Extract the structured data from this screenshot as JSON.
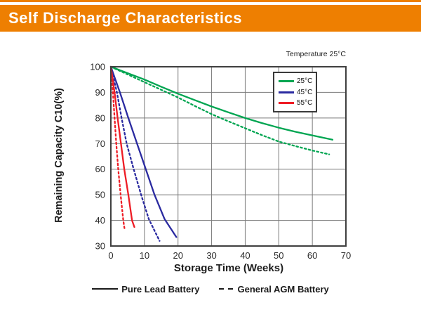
{
  "header": {
    "title": "Self Discharge Characteristics",
    "accent_color": "#EE7F01"
  },
  "chart": {
    "note": "Temperature 25°C",
    "grid_color": "#7a7a7a",
    "border_color": "#3f3f3f",
    "tick_color": "#2a2a2a",
    "legend": {
      "items": [
        {
          "label": "25°C",
          "color": "#00A551"
        },
        {
          "label": "45°C",
          "color": "#2A2AA0"
        },
        {
          "label": "55°C",
          "color": "#EE1C25"
        }
      ]
    },
    "bottom_legend": [
      {
        "label": "Pure Lead Battery",
        "style": "solid"
      },
      {
        "label": "General AGM Battery",
        "style": "dashed"
      }
    ]
  },
  "chart_data": {
    "type": "line",
    "title": "Self Discharge Characteristics",
    "xlabel": "Storage Time (Weeks)",
    "ylabel": "Remaining Capacity C10(%)",
    "annotation": "Temperature 25°C",
    "xlim": [
      0,
      70
    ],
    "ylim": [
      30,
      100
    ],
    "xticks": [
      0,
      10,
      20,
      30,
      40,
      50,
      60,
      70
    ],
    "yticks": [
      30,
      40,
      50,
      60,
      70,
      80,
      90,
      100
    ],
    "grid": true,
    "legend_position": "top-right",
    "series": [
      {
        "name": "25°C Pure Lead Battery",
        "temperature": "25°C",
        "battery": "Pure Lead Battery",
        "color": "#00A551",
        "dash": "solid",
        "points": [
          [
            0,
            100
          ],
          [
            5,
            97.5
          ],
          [
            10,
            95
          ],
          [
            15,
            92.2
          ],
          [
            20,
            89.5
          ],
          [
            25,
            87
          ],
          [
            30,
            84.5
          ],
          [
            35,
            82.2
          ],
          [
            40,
            80
          ],
          [
            45,
            78
          ],
          [
            50,
            76.2
          ],
          [
            55,
            74.6
          ],
          [
            60,
            73.2
          ],
          [
            66,
            71.5
          ]
        ]
      },
      {
        "name": "25°C General AGM Battery",
        "temperature": "25°C",
        "battery": "General AGM Battery",
        "color": "#00A551",
        "dash": "dashed",
        "points": [
          [
            0,
            100
          ],
          [
            5,
            97
          ],
          [
            10,
            94
          ],
          [
            15,
            91
          ],
          [
            20,
            88
          ],
          [
            25,
            84.7
          ],
          [
            30,
            81.5
          ],
          [
            35,
            78.7
          ],
          [
            40,
            76
          ],
          [
            45,
            73.3
          ],
          [
            50,
            70.8
          ],
          [
            55,
            69
          ],
          [
            60,
            67.3
          ],
          [
            65,
            65.8
          ]
        ]
      },
      {
        "name": "45°C Pure Lead Battery",
        "temperature": "45°C",
        "battery": "Pure Lead Battery",
        "color": "#2A2AA0",
        "dash": "solid",
        "points": [
          [
            0,
            100
          ],
          [
            2.7,
            90
          ],
          [
            5.2,
            80
          ],
          [
            7.8,
            70
          ],
          [
            10.4,
            60
          ],
          [
            13,
            50
          ],
          [
            16,
            40.5
          ],
          [
            19.5,
            33.5
          ]
        ]
      },
      {
        "name": "45°C General AGM Battery",
        "temperature": "45°C",
        "battery": "General AGM Battery",
        "color": "#2A2AA0",
        "dash": "dashed",
        "points": [
          [
            0,
            100
          ],
          [
            1.8,
            90
          ],
          [
            3.2,
            80
          ],
          [
            4.7,
            70
          ],
          [
            6.8,
            60
          ],
          [
            9,
            50
          ],
          [
            11.3,
            40.5
          ],
          [
            14.5,
            32
          ]
        ]
      },
      {
        "name": "55°C Pure Lead Battery",
        "temperature": "55°C",
        "battery": "Pure Lead Battery",
        "color": "#EE1C25",
        "dash": "solid",
        "points": [
          [
            0,
            100
          ],
          [
            1.1,
            90
          ],
          [
            2,
            80
          ],
          [
            3,
            70
          ],
          [
            4,
            60
          ],
          [
            5.2,
            50
          ],
          [
            6.3,
            40
          ],
          [
            7,
            37.4
          ]
        ]
      },
      {
        "name": "55°C General AGM Battery",
        "temperature": "55°C",
        "battery": "General AGM Battery",
        "color": "#EE1C25",
        "dash": "dashed",
        "points": [
          [
            0,
            100
          ],
          [
            0.6,
            90
          ],
          [
            1.1,
            80
          ],
          [
            1.6,
            70
          ],
          [
            2.2,
            60
          ],
          [
            2.9,
            50
          ],
          [
            3.7,
            40
          ],
          [
            4.1,
            36.5
          ]
        ]
      }
    ]
  }
}
